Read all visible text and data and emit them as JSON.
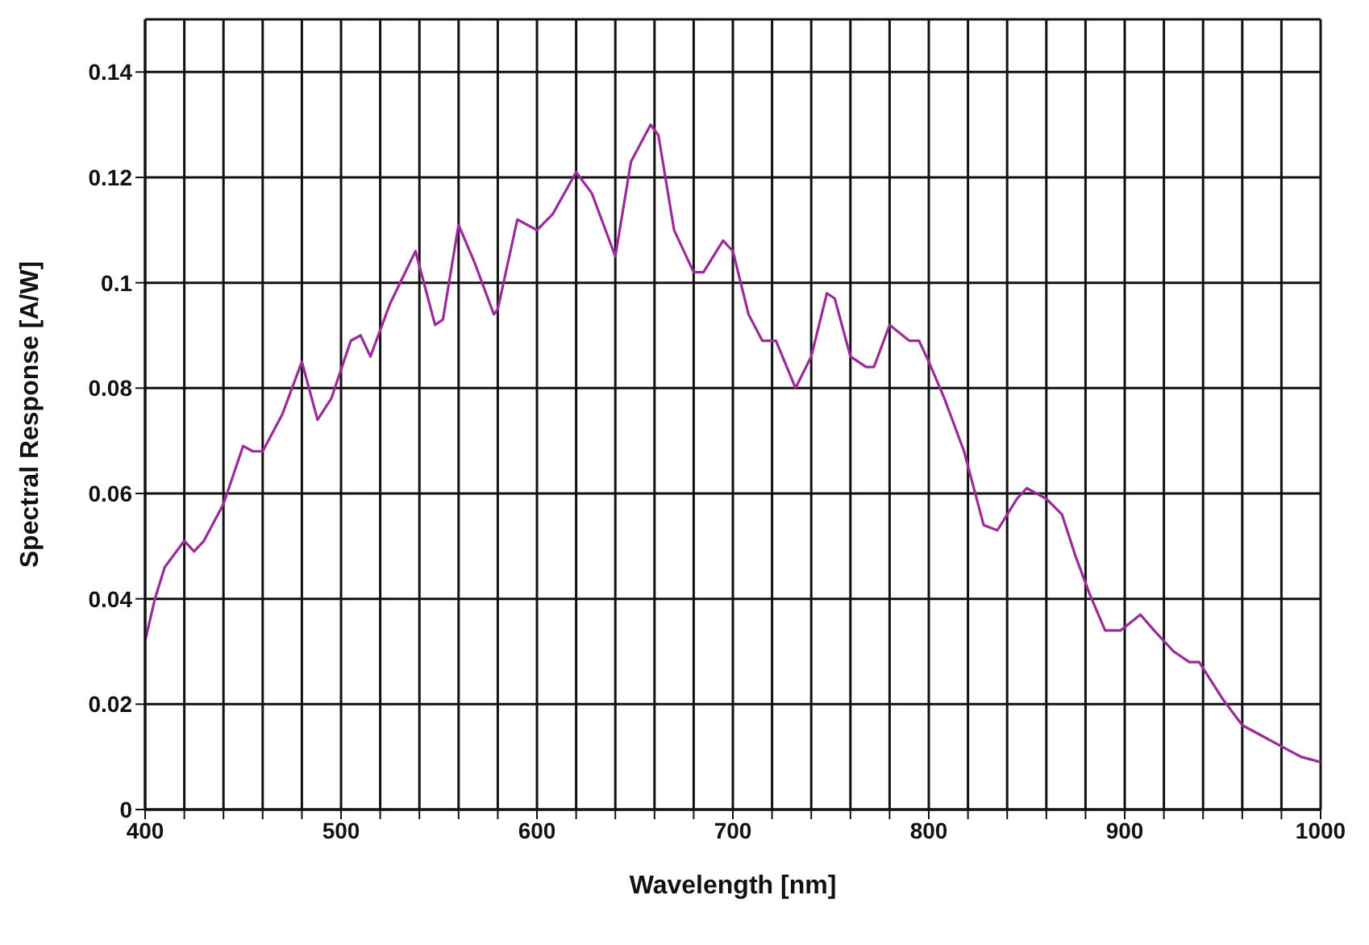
{
  "chart_data": {
    "type": "line",
    "xlabel": "Wavelength [nm]",
    "ylabel": "Spectral Response [A/W]",
    "x": [
      400,
      405,
      410,
      420,
      425,
      430,
      440,
      450,
      455,
      460,
      470,
      480,
      488,
      495,
      505,
      510,
      515,
      525,
      538,
      548,
      552,
      560,
      568,
      578,
      580,
      590,
      600,
      608,
      620,
      628,
      640,
      648,
      658,
      662,
      670,
      680,
      685,
      695,
      700,
      708,
      715,
      722,
      732,
      740,
      748,
      752,
      760,
      768,
      772,
      780,
      790,
      795,
      800,
      808,
      818,
      828,
      835,
      845,
      850,
      860,
      868,
      875,
      882,
      890,
      898,
      908,
      915,
      925,
      933,
      938,
      950,
      960,
      970,
      980,
      990,
      1000
    ],
    "series": [
      {
        "color": "#9b2a9b",
        "values": [
          0.032,
          0.04,
          0.046,
          0.051,
          0.049,
          0.051,
          0.058,
          0.069,
          0.068,
          0.068,
          0.075,
          0.085,
          0.074,
          0.078,
          0.089,
          0.09,
          0.086,
          0.096,
          0.106,
          0.092,
          0.093,
          0.111,
          0.104,
          0.094,
          0.095,
          0.112,
          0.11,
          0.113,
          0.121,
          0.117,
          0.105,
          0.123,
          0.13,
          0.128,
          0.11,
          0.102,
          0.102,
          0.108,
          0.106,
          0.094,
          0.089,
          0.089,
          0.08,
          0.086,
          0.098,
          0.097,
          0.086,
          0.084,
          0.084,
          0.092,
          0.089,
          0.089,
          0.085,
          0.078,
          0.068,
          0.054,
          0.053,
          0.059,
          0.061,
          0.059,
          0.056,
          0.048,
          0.041,
          0.034,
          0.034,
          0.037,
          0.034,
          0.03,
          0.028,
          0.028,
          0.021,
          0.016,
          0.014,
          0.012,
          0.01,
          0.009
        ]
      }
    ],
    "xlim": [
      400,
      1000
    ],
    "xticks": [
      400,
      {
        "value": 420,
        "label": null
      },
      {
        "value": 440,
        "label": null
      },
      {
        "value": 460,
        "label": null
      },
      {
        "value": 480,
        "label": null
      },
      500,
      {
        "value": 520,
        "label": null
      },
      {
        "value": 540,
        "label": null
      },
      {
        "value": 560,
        "label": null
      },
      {
        "value": 580,
        "label": null
      },
      600,
      {
        "value": 620,
        "label": null
      },
      {
        "value": 640,
        "label": null
      },
      {
        "value": 660,
        "label": null
      },
      {
        "value": 680,
        "label": null
      },
      700,
      {
        "value": 720,
        "label": null
      },
      {
        "value": 740,
        "label": null
      },
      {
        "value": 760,
        "label": null
      },
      {
        "value": 780,
        "label": null
      },
      800,
      {
        "value": 820,
        "label": null
      },
      {
        "value": 840,
        "label": null
      },
      {
        "value": 860,
        "label": null
      },
      {
        "value": 880,
        "label": null
      },
      900,
      {
        "value": 920,
        "label": null
      },
      {
        "value": 940,
        "label": null
      },
      {
        "value": 960,
        "label": null
      },
      {
        "value": 980,
        "label": null
      },
      1000
    ],
    "ylim": [
      0,
      0.15
    ],
    "yticks": [
      0,
      0.02,
      0.04,
      0.06,
      0.08,
      0.1,
      0.12,
      0.14
    ],
    "grid": true,
    "marker": "none",
    "line_style": "solid"
  }
}
